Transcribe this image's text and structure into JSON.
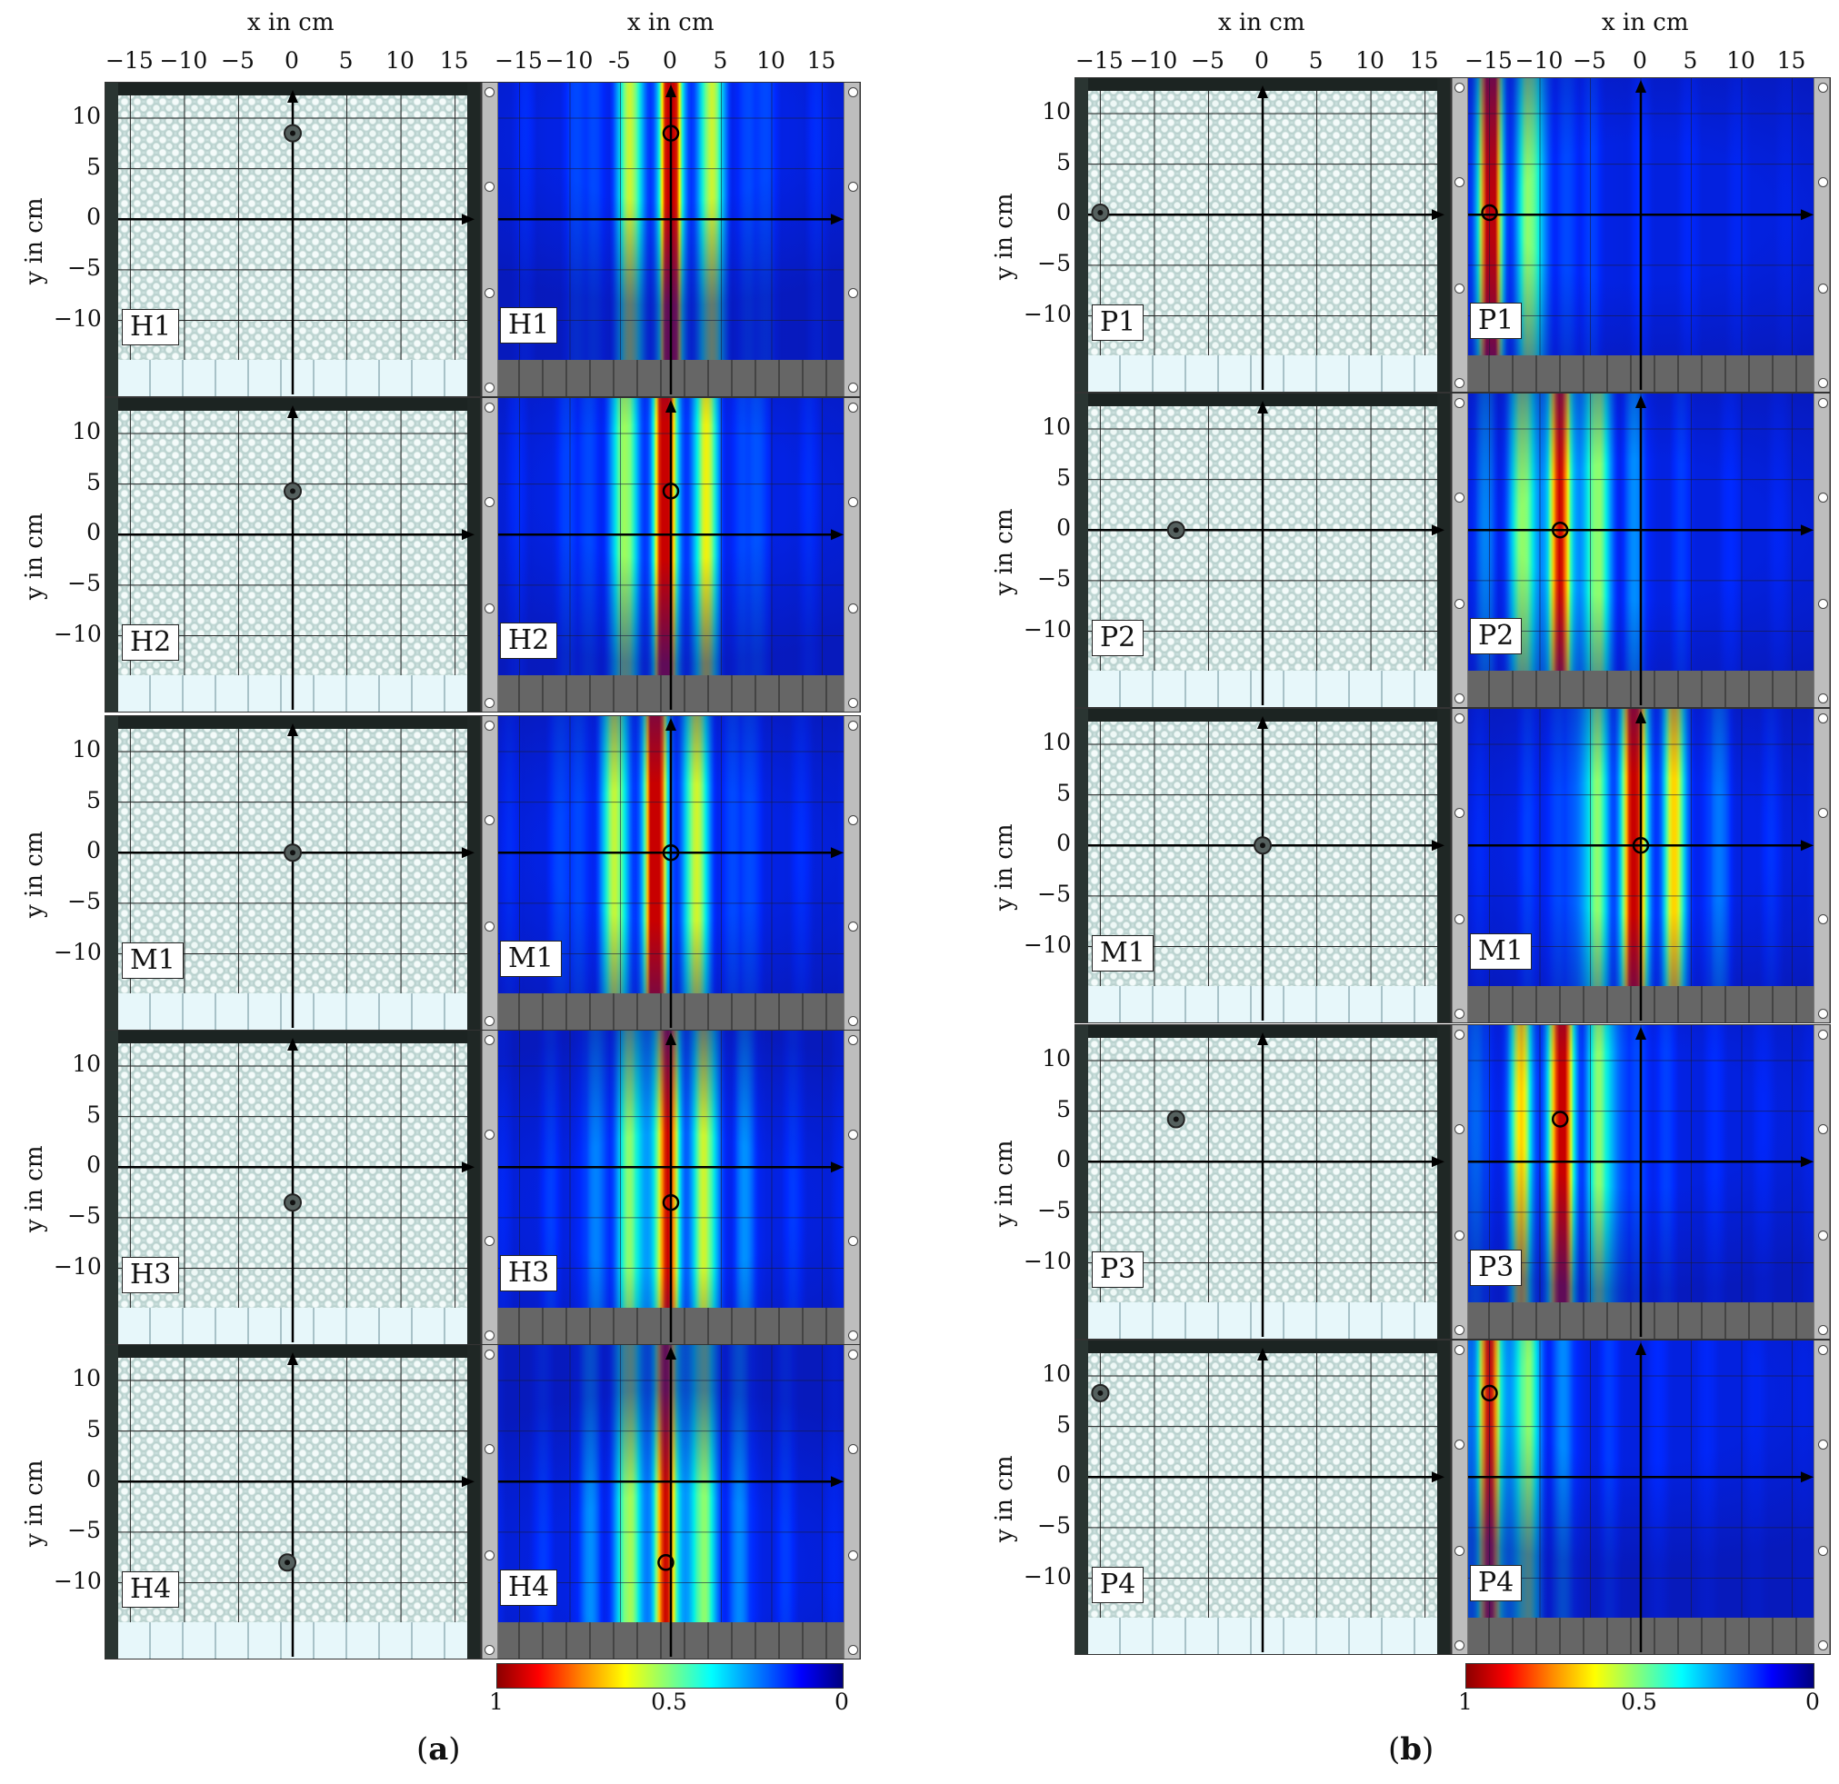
{
  "axes": {
    "x_title": "x in cm",
    "y_title": "y in cm",
    "x_ticks": [
      "−15",
      "−10",
      "−5",
      "0",
      "5",
      "10",
      "15"
    ],
    "x_ticks_heat_a": [
      "−15",
      "−10",
      "-5",
      "0",
      "5",
      "10",
      "15"
    ],
    "y_ticks": [
      "10",
      "5",
      "0",
      "−5",
      "−10"
    ]
  },
  "colorbar": {
    "left_label": "1",
    "mid_label": "0.5",
    "right_label": "0"
  },
  "captions": {
    "a": "a",
    "b": "b"
  },
  "groups": [
    {
      "id": "a",
      "panels": [
        {
          "label": "H1",
          "object_xy_cm": [
            0,
            8.5
          ],
          "peak_x_cm": 0
        },
        {
          "label": "H2",
          "object_xy_cm": [
            0,
            4.3
          ],
          "peak_x_cm": -0.5
        },
        {
          "label": "M1",
          "object_xy_cm": [
            0,
            0
          ],
          "peak_x_cm": -1.5
        },
        {
          "label": "H3",
          "object_xy_cm": [
            0,
            -3.5
          ],
          "peak_x_cm": -0.3
        },
        {
          "label": "H4",
          "object_xy_cm": [
            -0.5,
            -8
          ],
          "peak_x_cm": -0.5
        }
      ]
    },
    {
      "id": "b",
      "panels": [
        {
          "label": "P1",
          "object_xy_cm": [
            -15,
            0.2
          ],
          "peak_x_cm": -15
        },
        {
          "label": "P2",
          "object_xy_cm": [
            -8,
            0
          ],
          "peak_x_cm": -8
        },
        {
          "label": "M1",
          "object_xy_cm": [
            0,
            0
          ],
          "peak_x_cm": -0.5
        },
        {
          "label": "P3",
          "object_xy_cm": [
            -8,
            4.2
          ],
          "peak_x_cm": -8
        },
        {
          "label": "P4",
          "object_xy_cm": [
            -15,
            8.3
          ],
          "peak_x_cm": -15
        }
      ]
    }
  ]
}
